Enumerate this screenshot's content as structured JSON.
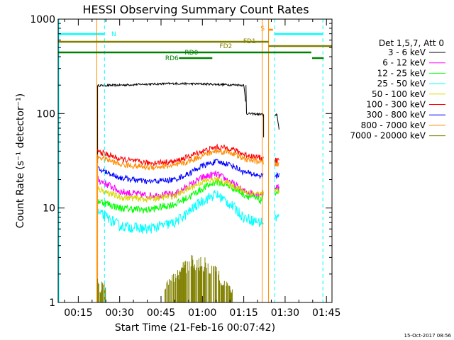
{
  "chart_data": {
    "type": "line",
    "title": "HESSI Observing Summary Count Rates",
    "xlabel": "Start Time (21-Feb-16 00:07:42)",
    "ylabel": "Count Rate (s⁻¹ detector⁻¹)",
    "x_unit": "minutes",
    "xlim": [
      7.7,
      107.0
    ],
    "ylim": [
      1,
      1000
    ],
    "yscale": "log",
    "grid": false,
    "x_ticks": [
      {
        "value": 15,
        "label": "00:15"
      },
      {
        "value": 30,
        "label": "00:30"
      },
      {
        "value": 45,
        "label": "00:45"
      },
      {
        "value": 60,
        "label": "01:00"
      },
      {
        "value": 75,
        "label": "01:15"
      },
      {
        "value": 90,
        "label": "01:30"
      },
      {
        "value": 105,
        "label": "01:45"
      }
    ],
    "y_ticks": [
      {
        "value": 1,
        "label": "1"
      },
      {
        "value": 10,
        "label": "10"
      },
      {
        "value": 100,
        "label": "100"
      },
      {
        "value": 1000,
        "label": "1000"
      }
    ],
    "legend_title": "Det 1,5,7, Att 0",
    "legend_position": "right",
    "timestamp": "15-Oct-2017 08:56",
    "series": [
      {
        "name": "3 - 6 keV",
        "color": "#000000",
        "x": [
          22,
          30,
          40,
          50,
          60,
          70,
          75,
          76,
          82,
          83,
          86,
          87,
          88
        ],
        "y": [
          198,
          200,
          205,
          208,
          206,
          202,
          200,
          100,
          98,
          56,
          90,
          100,
          60
        ]
      },
      {
        "name": "6 - 12 keV",
        "color": "#ff00ff",
        "x": [
          22,
          30,
          40,
          50,
          55,
          60,
          65,
          70,
          75,
          81,
          86,
          88
        ],
        "y": [
          20,
          15,
          13.5,
          14,
          17,
          21,
          23,
          19,
          15,
          14,
          17,
          16
        ]
      },
      {
        "name": "12 - 25 keV",
        "color": "#00ff00",
        "x": [
          22,
          30,
          40,
          50,
          55,
          60,
          65,
          70,
          75,
          81,
          86,
          88
        ],
        "y": [
          12,
          10,
          9.5,
          11,
          13,
          16,
          19,
          17,
          14,
          12,
          15,
          15
        ]
      },
      {
        "name": "25 - 50 keV",
        "color": "#00ffff",
        "x": [
          22,
          30,
          40,
          50,
          55,
          60,
          65,
          70,
          75,
          81,
          86,
          88
        ],
        "y": [
          9,
          6.5,
          6,
          7,
          9,
          12,
          14,
          11,
          8,
          7,
          8,
          8
        ]
      },
      {
        "name": "50 - 100 keV",
        "color": "#d8d800",
        "x": [
          22,
          30,
          40,
          50,
          55,
          60,
          65,
          70,
          75,
          81,
          86,
          88
        ],
        "y": [
          16,
          13,
          12.5,
          13.5,
          16,
          19,
          20,
          18,
          15,
          14,
          15,
          15
        ]
      },
      {
        "name": "100 - 300 keV",
        "color": "#ff0000",
        "x": [
          22,
          30,
          40,
          50,
          55,
          60,
          65,
          70,
          75,
          81,
          86,
          88
        ],
        "y": [
          40,
          33,
          30,
          31,
          35,
          40,
          44,
          43,
          37,
          34,
          32,
          32
        ]
      },
      {
        "name": "300 - 800 keV",
        "color": "#0000ff",
        "x": [
          22,
          30,
          40,
          50,
          55,
          60,
          65,
          70,
          75,
          81,
          86,
          88
        ],
        "y": [
          26,
          21,
          19,
          20,
          23,
          28,
          31,
          29,
          24,
          22,
          22,
          22
        ]
      },
      {
        "name": "800 - 7000 keV",
        "color": "#ff8c00",
        "x": [
          22,
          30,
          40,
          50,
          55,
          60,
          65,
          70,
          75,
          81,
          86,
          88
        ],
        "y": [
          35,
          29,
          27,
          28,
          31,
          36,
          40,
          39,
          33,
          31,
          29,
          29
        ]
      },
      {
        "name": "7000 - 20000 keV",
        "color": "#808000",
        "x": [
          22,
          23,
          24,
          25,
          46,
          50,
          53,
          57,
          60,
          62,
          65,
          68,
          71
        ],
        "y": [
          1.8,
          1.3,
          1.9,
          1.4,
          1.5,
          1.9,
          2.4,
          3.0,
          2.8,
          2.6,
          2.2,
          1.7,
          1.3
        ]
      }
    ],
    "flag_labels": [
      "N",
      "S",
      "FD1",
      "FD2",
      "RD0",
      "RD6"
    ],
    "flag_colors": {
      "night": "#00ffff",
      "saa": "#ff8c00",
      "fd": "#808000",
      "rd": "#008000"
    }
  }
}
